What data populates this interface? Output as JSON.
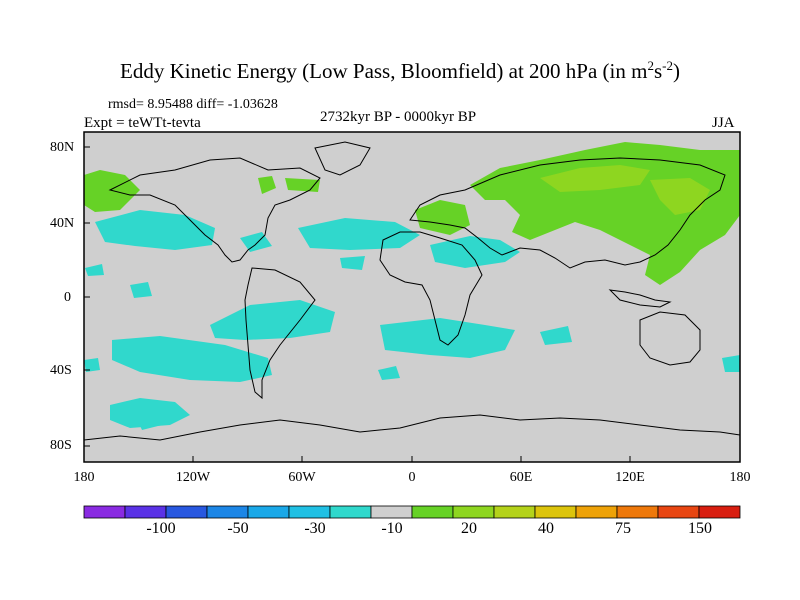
{
  "title": {
    "main": "Eddy Kinetic Energy (Low Pass, Bloomfield) at 200 hPa (in m",
    "sup1": "2",
    "mid": "s",
    "sup2": "-2",
    "close": ")"
  },
  "stats": "rmsd= 8.95488 diff= -1.03628",
  "expt": "Expt = teWTt-tevta",
  "period": "2732kyr BP - 0000kyr BP",
  "season": "JJA",
  "lat_labels": [
    "80N",
    "40N",
    "0",
    "40S",
    "80S"
  ],
  "lon_labels": [
    "180",
    "120W",
    "60W",
    "0",
    "60E",
    "120E",
    "180"
  ],
  "colorbar": {
    "colors": [
      "#8a2be2",
      "#5a32e6",
      "#2858e0",
      "#1c86e6",
      "#1aa8e8",
      "#20c0e4",
      "#30d8cc",
      "#cfcfcf",
      "#66d226",
      "#8ed620",
      "#b4d21a",
      "#dcc40c",
      "#eea208",
      "#ee780a",
      "#e84612",
      "#d81e10"
    ],
    "labels": [
      "-100",
      "-50",
      "-30",
      "-10",
      "20",
      "40",
      "75",
      "150"
    ]
  },
  "map_colors": {
    "land_bg": "#cfcfcf",
    "cyan": "#30d8cc",
    "green": "#66d226",
    "lightgreen": "#8ed620",
    "coast": "#000000"
  }
}
